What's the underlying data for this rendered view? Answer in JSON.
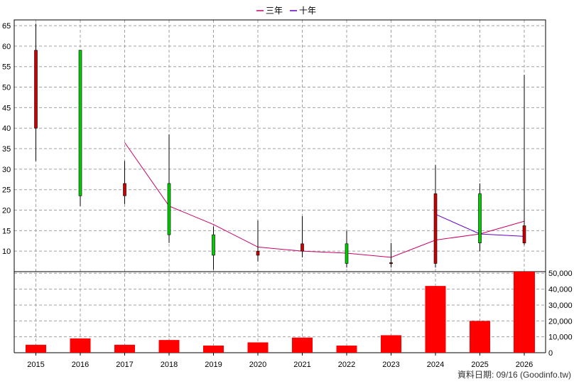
{
  "chart_data": {
    "type": "candlestick+line+bar",
    "categories": [
      "2015",
      "2016",
      "2017",
      "2018",
      "2019",
      "2020",
      "2021",
      "2022",
      "2023",
      "2024",
      "2025",
      "2026"
    ],
    "legend": [
      {
        "name": "三年",
        "color": "#cc0066"
      },
      {
        "name": "十年",
        "color": "#6600cc"
      }
    ],
    "legend_placement": "top-center",
    "grid": true,
    "price_axis": {
      "ylim": [
        5,
        66.4
      ],
      "ticks": [
        10,
        15,
        20,
        25,
        30,
        35,
        40,
        45,
        50,
        55,
        60,
        65
      ],
      "side": "left"
    },
    "volume_axis": {
      "ylim": [
        0,
        51000
      ],
      "ticks": [
        0,
        10000,
        20000,
        30000,
        40000,
        50000
      ],
      "tick_labels": [
        "0",
        "10,000",
        "20,000",
        "30,000",
        "40,000",
        "50,000"
      ],
      "side": "right"
    },
    "candles": [
      {
        "x": "2015",
        "open": 40,
        "close": 59,
        "high": 65.5,
        "low": 32
      },
      {
        "x": "2016",
        "open": 59,
        "close": 23.5,
        "high": 59,
        "low": 21
      },
      {
        "x": "2017",
        "open": 23.5,
        "close": 26.5,
        "high": 32,
        "low": 21.5
      },
      {
        "x": "2018",
        "open": 26.5,
        "close": 14,
        "high": 38.5,
        "low": 12
      },
      {
        "x": "2019",
        "open": 14,
        "close": 9,
        "high": 16,
        "low": 5.5
      },
      {
        "x": "2020",
        "open": 9,
        "close": 10,
        "high": 17.5,
        "low": 7.5
      },
      {
        "x": "2021",
        "open": 10,
        "close": 11.8,
        "high": 18.5,
        "low": 8.5
      },
      {
        "x": "2022",
        "open": 11.8,
        "close": 7,
        "high": 15,
        "low": 6
      },
      {
        "x": "2023",
        "open": 7,
        "close": 7.2,
        "high": 12,
        "low": 6
      },
      {
        "x": "2024",
        "open": 7,
        "close": 24,
        "high": 31,
        "low": 6
      },
      {
        "x": "2025",
        "open": 24,
        "close": 12,
        "high": 26.5,
        "low": 10
      },
      {
        "x": "2026",
        "open": 12,
        "close": 16.2,
        "high": 53,
        "low": 11.5
      }
    ],
    "series": [
      {
        "name": "三年",
        "x": [
          "2017",
          "2018",
          "2019",
          "2020",
          "2021",
          "2022",
          "2023",
          "2024",
          "2025",
          "2026"
        ],
        "values": [
          36.5,
          21,
          16.5,
          11,
          10,
          9.5,
          8.5,
          12.7,
          14.2,
          17.3
        ]
      },
      {
        "name": "十年",
        "x": [
          "2024",
          "2025",
          "2026"
        ],
        "values": [
          19,
          14.2,
          13.6
        ]
      }
    ],
    "volume": [
      5000,
      9000,
      5000,
      8000,
      4500,
      6500,
      9500,
      4500,
      11000,
      42000,
      20000,
      51000
    ],
    "volume_color": "#ff0000",
    "up_color": "#cc0000",
    "down_color": "#00cc00"
  },
  "footer": {
    "date_text": "資料日期: 09/16  (Goodinfo.tw)"
  }
}
